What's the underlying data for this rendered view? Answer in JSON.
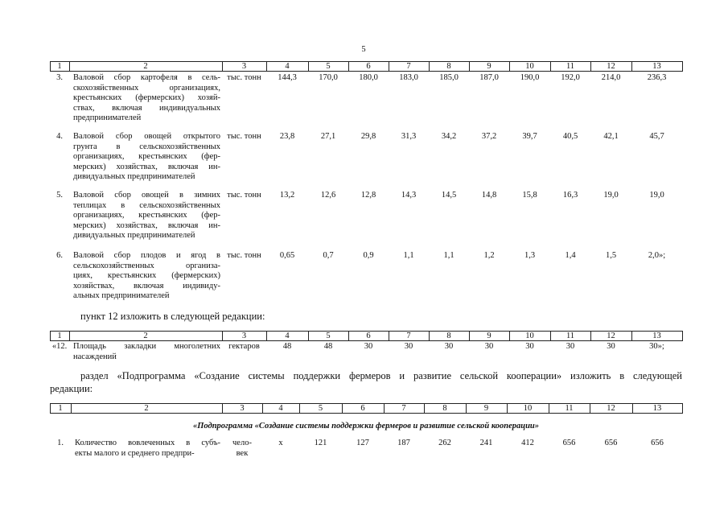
{
  "page_number": "5",
  "tables": [
    {
      "header": [
        "1",
        "2",
        "3",
        "4",
        "5",
        "6",
        "7",
        "8",
        "9",
        "10",
        "11",
        "12",
        "13"
      ],
      "rows": [
        {
          "num": "3.",
          "name_lines": [
            "Валовой сбор картофеля в сель-",
            "скохозяйственных организациях,",
            "крестьянских (фермерских) хозяй-",
            "ствах, включая индивидуальных",
            "предпринимателей"
          ],
          "unit_lines": [
            "тыс. тонн"
          ],
          "values": [
            "144,3",
            "170,0",
            "180,0",
            "183,0",
            "185,0",
            "187,0",
            "190,0",
            "192,0",
            "214,0",
            "236,3"
          ]
        },
        {
          "num": "4.",
          "name_lines": [
            "Валовой сбор овощей открытого",
            "грунта в сельскохозяйственных",
            "организациях, крестьянских (фер-",
            "мерских) хозяйствах, включая ин-",
            "дивидуальных предпринимателей"
          ],
          "unit_lines": [
            "тыс. тонн"
          ],
          "values": [
            "23,8",
            "27,1",
            "29,8",
            "31,3",
            "34,2",
            "37,2",
            "39,7",
            "40,5",
            "42,1",
            "45,7"
          ]
        },
        {
          "num": "5.",
          "name_lines": [
            "Валовой сбор овощей в зимних",
            "теплицах в сельскохозяйственных",
            "организациях, крестьянских (фер-",
            "мерских) хозяйствах, включая ин-",
            "дивидуальных предпринимателей"
          ],
          "unit_lines": [
            "тыс. тонн"
          ],
          "values": [
            "13,2",
            "12,6",
            "12,8",
            "14,3",
            "14,5",
            "14,8",
            "15,8",
            "16,3",
            "19,0",
            "19,0"
          ]
        },
        {
          "num": "6.",
          "name_lines": [
            "Валовой сбор плодов и ягод в",
            "сельскохозяйственных организа-",
            "циях, крестьянских (фермерских)",
            "хозяйствах, включая индивиду-",
            "альных предпринимателей"
          ],
          "unit_lines": [
            "тыс. тонн"
          ],
          "values": [
            "0,65",
            "0,7",
            "0,9",
            "1,1",
            "1,1",
            "1,2",
            "1,3",
            "1,4",
            "1,5",
            "2,0»;"
          ]
        }
      ]
    },
    {
      "header": [
        "1",
        "2",
        "3",
        "4",
        "5",
        "6",
        "7",
        "8",
        "9",
        "10",
        "11",
        "12",
        "13"
      ],
      "rows": [
        {
          "num": "«12.",
          "name_lines": [
            "Площадь закладки многолетних",
            "насаждений"
          ],
          "unit_lines": [
            "гектаров"
          ],
          "values": [
            "48",
            "48",
            "30",
            "30",
            "30",
            "30",
            "30",
            "30",
            "30",
            "30»;"
          ]
        }
      ]
    },
    {
      "header": [
        "1",
        "2",
        "3",
        "4",
        "5",
        "6",
        "7",
        "8",
        "9",
        "10",
        "11",
        "12",
        "13"
      ],
      "section_title": "«Подпрограмма «Создание системы поддержки фермеров и развитие сельской кооперации»",
      "rows": [
        {
          "num": "1.",
          "name_lines": [
            "Количество вовлеченных в субъ-",
            "екты малого и среднего предпри-"
          ],
          "unit_lines": [
            "чело-",
            "век"
          ],
          "values": [
            "х",
            "121",
            "127",
            "187",
            "262",
            "241",
            "412",
            "656",
            "656",
            "656"
          ]
        }
      ]
    }
  ],
  "paragraphs": [
    {
      "lines": [
        "пункт 12 изложить в следующей редакции:"
      ]
    },
    {
      "lines": [
        "раздел «Подпрограмма «Создание системы поддержки фермеров и развитие сельской кооперации» изложить в следующей",
        "редакции:"
      ]
    }
  ]
}
